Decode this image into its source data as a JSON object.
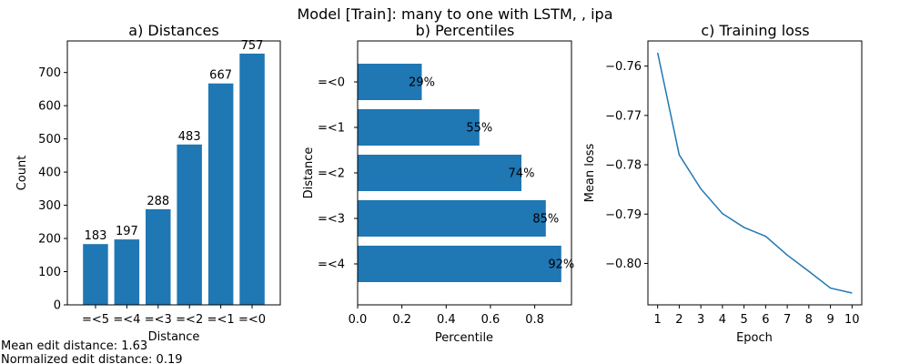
{
  "figure": {
    "suptitle": "Model [Train]: many to one with LSTM, , ipa",
    "footer_lines": [
      "Mean edit distance: 1.63",
      "Normalized edit distance: 0.19"
    ]
  },
  "colors": {
    "bar": "#1f77b4",
    "line": "#1f77b4"
  },
  "chart_data": [
    {
      "type": "bar",
      "title": "a) Distances",
      "xlabel": "Distance",
      "ylabel": "Count",
      "categories": [
        "=<5",
        "=<4",
        "=<3",
        "=<2",
        "=<1",
        "=<0"
      ],
      "values": [
        183,
        197,
        288,
        483,
        667,
        757
      ],
      "data_labels": [
        "183",
        "197",
        "288",
        "483",
        "667",
        "757"
      ],
      "yticks": [
        0,
        100,
        200,
        300,
        400,
        500,
        600,
        700
      ],
      "ylim": [
        0,
        795
      ]
    },
    {
      "type": "bar",
      "orientation": "horizontal",
      "title": "b) Percentiles",
      "xlabel": "Percentile",
      "ylabel": "Distance",
      "categories": [
        "=<0",
        "=<1",
        "=<2",
        "=<3",
        "=<4"
      ],
      "values": [
        0.29,
        0.55,
        0.74,
        0.85,
        0.92
      ],
      "data_labels": [
        "29%",
        "55%",
        "74%",
        "85%",
        "92%"
      ],
      "xticks": [
        0.0,
        0.2,
        0.4,
        0.6,
        0.8
      ],
      "xlim": [
        0,
        0.966
      ]
    },
    {
      "type": "line",
      "title": "c) Training loss",
      "xlabel": "Epoch",
      "ylabel": "Mean loss",
      "x": [
        1,
        2,
        3,
        4,
        5,
        6,
        7,
        8,
        9,
        10
      ],
      "y": [
        -0.7573,
        -0.778,
        -0.7849,
        -0.7899,
        -0.7927,
        -0.7945,
        -0.7983,
        -0.8016,
        -0.805,
        -0.806
      ],
      "xticks": [
        1,
        2,
        3,
        4,
        5,
        6,
        7,
        8,
        9,
        10
      ],
      "yticks": [
        -0.76,
        -0.77,
        -0.78,
        -0.79,
        -0.8
      ],
      "ylim": [
        -0.8084,
        -0.7549
      ]
    }
  ]
}
